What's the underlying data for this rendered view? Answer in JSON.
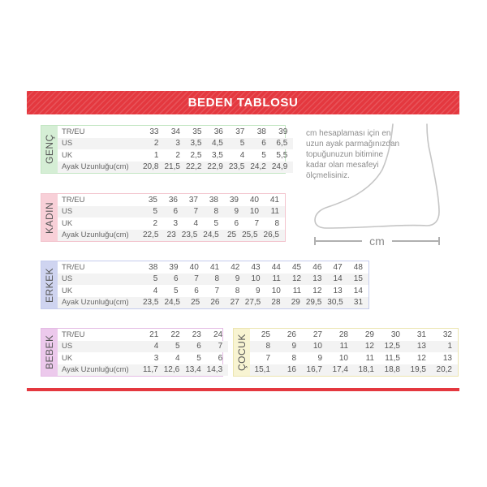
{
  "header": {
    "title": "BEDEN TABLOSU"
  },
  "colors": {
    "banner": "#e4383f",
    "banner_text": "#ffffff",
    "bottom_line": "#e4383f",
    "row_stripe": "#f3f3f3",
    "table_text": "#555555"
  },
  "tables": [
    {
      "label": "GENÇ",
      "row_labels": [
        "TR/EU",
        "US",
        "UK",
        "Ayak Uzunluğu(cm)"
      ],
      "rows": [
        [
          "33",
          "34",
          "35",
          "36",
          "37",
          "38",
          "39"
        ],
        [
          "2",
          "3",
          "3,5",
          "4,5",
          "5",
          "6",
          "6,5"
        ],
        [
          "1",
          "2",
          "2,5",
          "3,5",
          "4",
          "5",
          "5,5"
        ],
        [
          "20,8",
          "21,5",
          "22,2",
          "22,9",
          "23,5",
          "24,2",
          "24,9"
        ]
      ],
      "theme": {
        "label_bg": "#d5eed5",
        "border": "#c3e6c3"
      }
    },
    {
      "label": "KADIN",
      "row_labels": [
        "TR/EU",
        "US",
        "UK",
        "Ayak Uzunluğu(cm)"
      ],
      "rows": [
        [
          "35",
          "36",
          "37",
          "38",
          "39",
          "40",
          "41"
        ],
        [
          "5",
          "6",
          "7",
          "8",
          "9",
          "10",
          "11"
        ],
        [
          "2",
          "3",
          "4",
          "5",
          "6",
          "7",
          "8"
        ],
        [
          "22,5",
          "23",
          "23,5",
          "24,5",
          "25",
          "25,5",
          "26,5"
        ]
      ],
      "theme": {
        "label_bg": "#f8d0d8",
        "border": "#f3c5ce"
      }
    },
    {
      "label": "ERKEK",
      "row_labels": [
        "TR/EU",
        "US",
        "UK",
        "Ayak Uzunluğu(cm)"
      ],
      "rows": [
        [
          "38",
          "39",
          "40",
          "41",
          "42",
          "43",
          "44",
          "45",
          "46",
          "47",
          "48"
        ],
        [
          "5",
          "6",
          "7",
          "8",
          "9",
          "10",
          "11",
          "12",
          "13",
          "14",
          "15"
        ],
        [
          "4",
          "5",
          "6",
          "7",
          "8",
          "9",
          "10",
          "11",
          "12",
          "13",
          "14"
        ],
        [
          "23,5",
          "24,5",
          "25",
          "26",
          "27",
          "27,5",
          "28",
          "29",
          "29,5",
          "30,5",
          "31"
        ]
      ],
      "theme": {
        "label_bg": "#cfd4f0",
        "border": "#c4cbec"
      }
    },
    {
      "label": "BEBEK",
      "row_labels": [
        "TR/EU",
        "US",
        "UK",
        "Ayak Uzunluğu(cm)"
      ],
      "rows": [
        [
          "21",
          "22",
          "23",
          "24"
        ],
        [
          "4",
          "5",
          "6",
          "7"
        ],
        [
          "3",
          "4",
          "5",
          "6"
        ],
        [
          "11,7",
          "12,6",
          "13,4",
          "14,3"
        ]
      ],
      "theme": {
        "label_bg": "#ecc9ec",
        "border": "#e4bbe4"
      }
    },
    {
      "label": "ÇOCUK",
      "row_labels": [],
      "rows": [
        [
          "25",
          "26",
          "27",
          "28",
          "29",
          "30",
          "31",
          "32"
        ],
        [
          "8",
          "9",
          "10",
          "11",
          "12",
          "12,5",
          "13",
          "1"
        ],
        [
          "7",
          "8",
          "9",
          "10",
          "11",
          "11,5",
          "12",
          "13"
        ],
        [
          "15,1",
          "16",
          "16,7",
          "17,4",
          "18,1",
          "18,8",
          "19,5",
          "20,2"
        ]
      ],
      "theme": {
        "label_bg": "#f8f4d2",
        "border": "#ece5b0"
      }
    }
  ],
  "info": {
    "text": "cm hesaplaması için en uzun ayak parmağınızdan topuğunuzun bitimine kadar olan mesafeyi ölçmelisiniz.",
    "measure_label": "cm"
  }
}
